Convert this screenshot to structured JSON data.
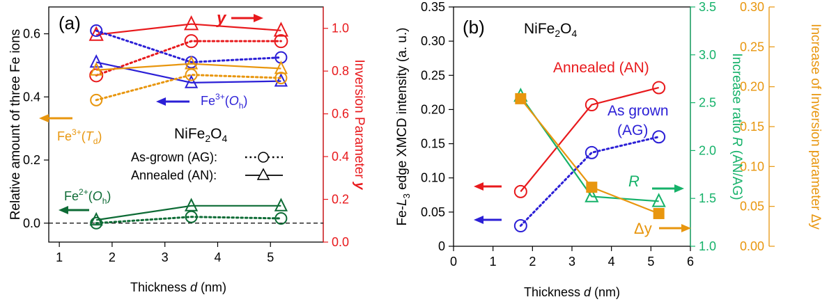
{
  "colors": {
    "red": "#e8191c",
    "blue": "#2b1fd6",
    "orange": "#e8960e",
    "green": "#0d6b35",
    "teal": "#16b26a",
    "black": "#000000"
  },
  "chart_data": [
    {
      "type": "line",
      "panel_label": "(a)",
      "compound": "NiFe2O4",
      "xlabel": "Thickness d (nm)",
      "ylabel_left": "Relative amount of three Fe ions",
      "ylabel_right": "Inversion Parameter y",
      "xlim": [
        0.8,
        6.0
      ],
      "ylim_left": [
        -0.06,
        0.685
      ],
      "ylim_right": [
        0,
        1.1
      ],
      "x_ticks": [
        1,
        2,
        3,
        4,
        5
      ],
      "y_ticks_left": [
        0.0,
        0.2,
        0.4,
        0.6
      ],
      "y_ticks_right": [
        0.0,
        0.2,
        0.4,
        0.6,
        0.8,
        1.0
      ],
      "legend": {
        "as_grown": "As-grown (AG):",
        "annealed": "Annealed (AN):"
      },
      "annotations": {
        "y_label": "y",
        "fe3_oh": {
          "base": "Fe",
          "sup": "3+",
          "open": "(",
          "sym": "O",
          "sub": "h",
          "close": ")"
        },
        "fe3_td": {
          "base": "Fe",
          "sup": "3+",
          "open": "(",
          "sym": "T",
          "sub": "d",
          "close": ")"
        },
        "fe2_oh": {
          "base": "Fe",
          "sup": "2+",
          "open": "(",
          "sym": "O",
          "sub": "h",
          "close": ")"
        }
      },
      "series": [
        {
          "key": "y_AN",
          "axis": "right",
          "color": "red",
          "style": "solid",
          "marker": "triangle",
          "x": [
            1.7,
            3.5,
            5.2
          ],
          "y": [
            0.97,
            1.02,
            0.99
          ]
        },
        {
          "key": "y_AG",
          "axis": "right",
          "color": "red",
          "style": "dotted",
          "marker": "circle",
          "x": [
            1.7,
            3.5,
            5.2
          ],
          "y": [
            0.78,
            0.94,
            0.94
          ]
        },
        {
          "key": "Fe3Oh_AG",
          "axis": "left",
          "color": "blue",
          "style": "dotted",
          "marker": "circle",
          "x": [
            1.7,
            3.5,
            5.2
          ],
          "y": [
            0.61,
            0.51,
            0.525
          ]
        },
        {
          "key": "Fe3Oh_AN",
          "axis": "left",
          "color": "blue",
          "style": "solid",
          "marker": "triangle",
          "x": [
            1.7,
            3.5,
            5.2
          ],
          "y": [
            0.51,
            0.445,
            0.45
          ]
        },
        {
          "key": "Fe3Td_AG",
          "axis": "left",
          "color": "orange",
          "style": "dotted",
          "marker": "circle",
          "x": [
            1.7,
            3.5,
            5.2
          ],
          "y": [
            0.39,
            0.47,
            0.46
          ]
        },
        {
          "key": "Fe3Td_AN",
          "axis": "left",
          "color": "orange",
          "style": "solid",
          "marker": "triangle",
          "x": [
            1.7,
            3.5,
            5.2
          ],
          "y": [
            0.485,
            0.505,
            0.49
          ]
        },
        {
          "key": "Fe2Oh_AG",
          "axis": "left",
          "color": "green",
          "style": "dotted",
          "marker": "circle",
          "x": [
            1.7,
            3.5,
            5.2
          ],
          "y": [
            0.0,
            0.02,
            0.015
          ]
        },
        {
          "key": "Fe2Oh_AN",
          "axis": "left",
          "color": "green",
          "style": "solid",
          "marker": "triangle",
          "x": [
            1.7,
            3.5,
            5.2
          ],
          "y": [
            0.01,
            0.055,
            0.055
          ]
        }
      ]
    },
    {
      "type": "line",
      "panel_label": "(b)",
      "compound": "NiFe2O4",
      "xlabel": "Thickness d (nm)",
      "ylabel_left": "Fe-L3 edge XMCD intensity (a. u.)",
      "ylabel_right1": "Increase ratio R (AN/AG)",
      "ylabel_right2": "Increase of Inversion parameter Δy",
      "xlim": [
        0,
        6
      ],
      "ylim_left": [
        0,
        0.35
      ],
      "ylim_right1": [
        1.0,
        3.5
      ],
      "ylim_right2": [
        0,
        0.3
      ],
      "x_ticks": [
        0,
        1,
        2,
        3,
        4,
        5,
        6
      ],
      "y_ticks_left": [
        0,
        0.05,
        0.1,
        0.15,
        0.2,
        0.25,
        0.3,
        0.35
      ],
      "y_ticks_right1": [
        1.0,
        1.5,
        2.0,
        2.5,
        3.0,
        3.5
      ],
      "y_ticks_right2": [
        0.0,
        0.05,
        0.1,
        0.15,
        0.2,
        0.25,
        0.3
      ],
      "annotations": {
        "annealed": "Annealed (AN)",
        "as_grown_1": "As grown",
        "as_grown_2": "(AG)",
        "R": "R",
        "delta_y": "Δy"
      },
      "series": [
        {
          "key": "XMCD_AN",
          "axis": "left",
          "color": "red",
          "style": "solid",
          "marker": "circle",
          "x": [
            1.7,
            3.5,
            5.2
          ],
          "y": [
            0.08,
            0.207,
            0.232
          ]
        },
        {
          "key": "XMCD_AG",
          "axis": "left",
          "color": "blue",
          "style": "dotted",
          "marker": "circle",
          "x": [
            1.7,
            3.5,
            5.2
          ],
          "y": [
            0.03,
            0.137,
            0.16
          ]
        },
        {
          "key": "R",
          "axis": "right1",
          "color": "teal",
          "style": "solid",
          "marker": "triangle",
          "x": [
            1.7,
            3.5,
            5.2
          ],
          "y": [
            2.57,
            1.52,
            1.47
          ]
        },
        {
          "key": "dy",
          "axis": "right2",
          "color": "orange",
          "style": "solid",
          "marker": "square",
          "x": [
            1.7,
            3.5,
            5.2
          ],
          "y": [
            0.185,
            0.074,
            0.041
          ]
        }
      ]
    }
  ]
}
